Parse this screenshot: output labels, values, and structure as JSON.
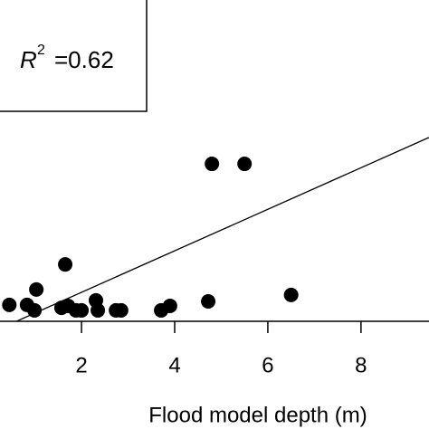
{
  "chart_data": {
    "type": "scatter",
    "x_label": "Flood model depth (m)",
    "annotation": {
      "symbol": "R",
      "superscript": "2",
      "text": "=0.62"
    },
    "x": [
      0.45,
      0.83,
      0.99,
      1.03,
      1.65,
      1.57,
      1.71,
      1.88,
      2.0,
      2.31,
      2.35,
      2.74,
      2.85,
      3.71,
      3.9,
      4.72,
      4.8,
      5.5,
      6.5
    ],
    "values": [
      0.51,
      0.51,
      0.34,
      0.99,
      1.77,
      0.42,
      0.48,
      0.34,
      0.34,
      0.65,
      0.34,
      0.34,
      0.34,
      0.34,
      0.48,
      0.62,
      4.9,
      4.9,
      0.82
    ],
    "color": "#000000",
    "trendline": {
      "slope": 0.646,
      "intercept": -0.39,
      "color": "#000000"
    },
    "xlim": [
      0.25,
      9.46
    ],
    "ylim": [
      0,
      10
    ],
    "xticks": [
      2,
      4,
      6,
      8
    ]
  }
}
